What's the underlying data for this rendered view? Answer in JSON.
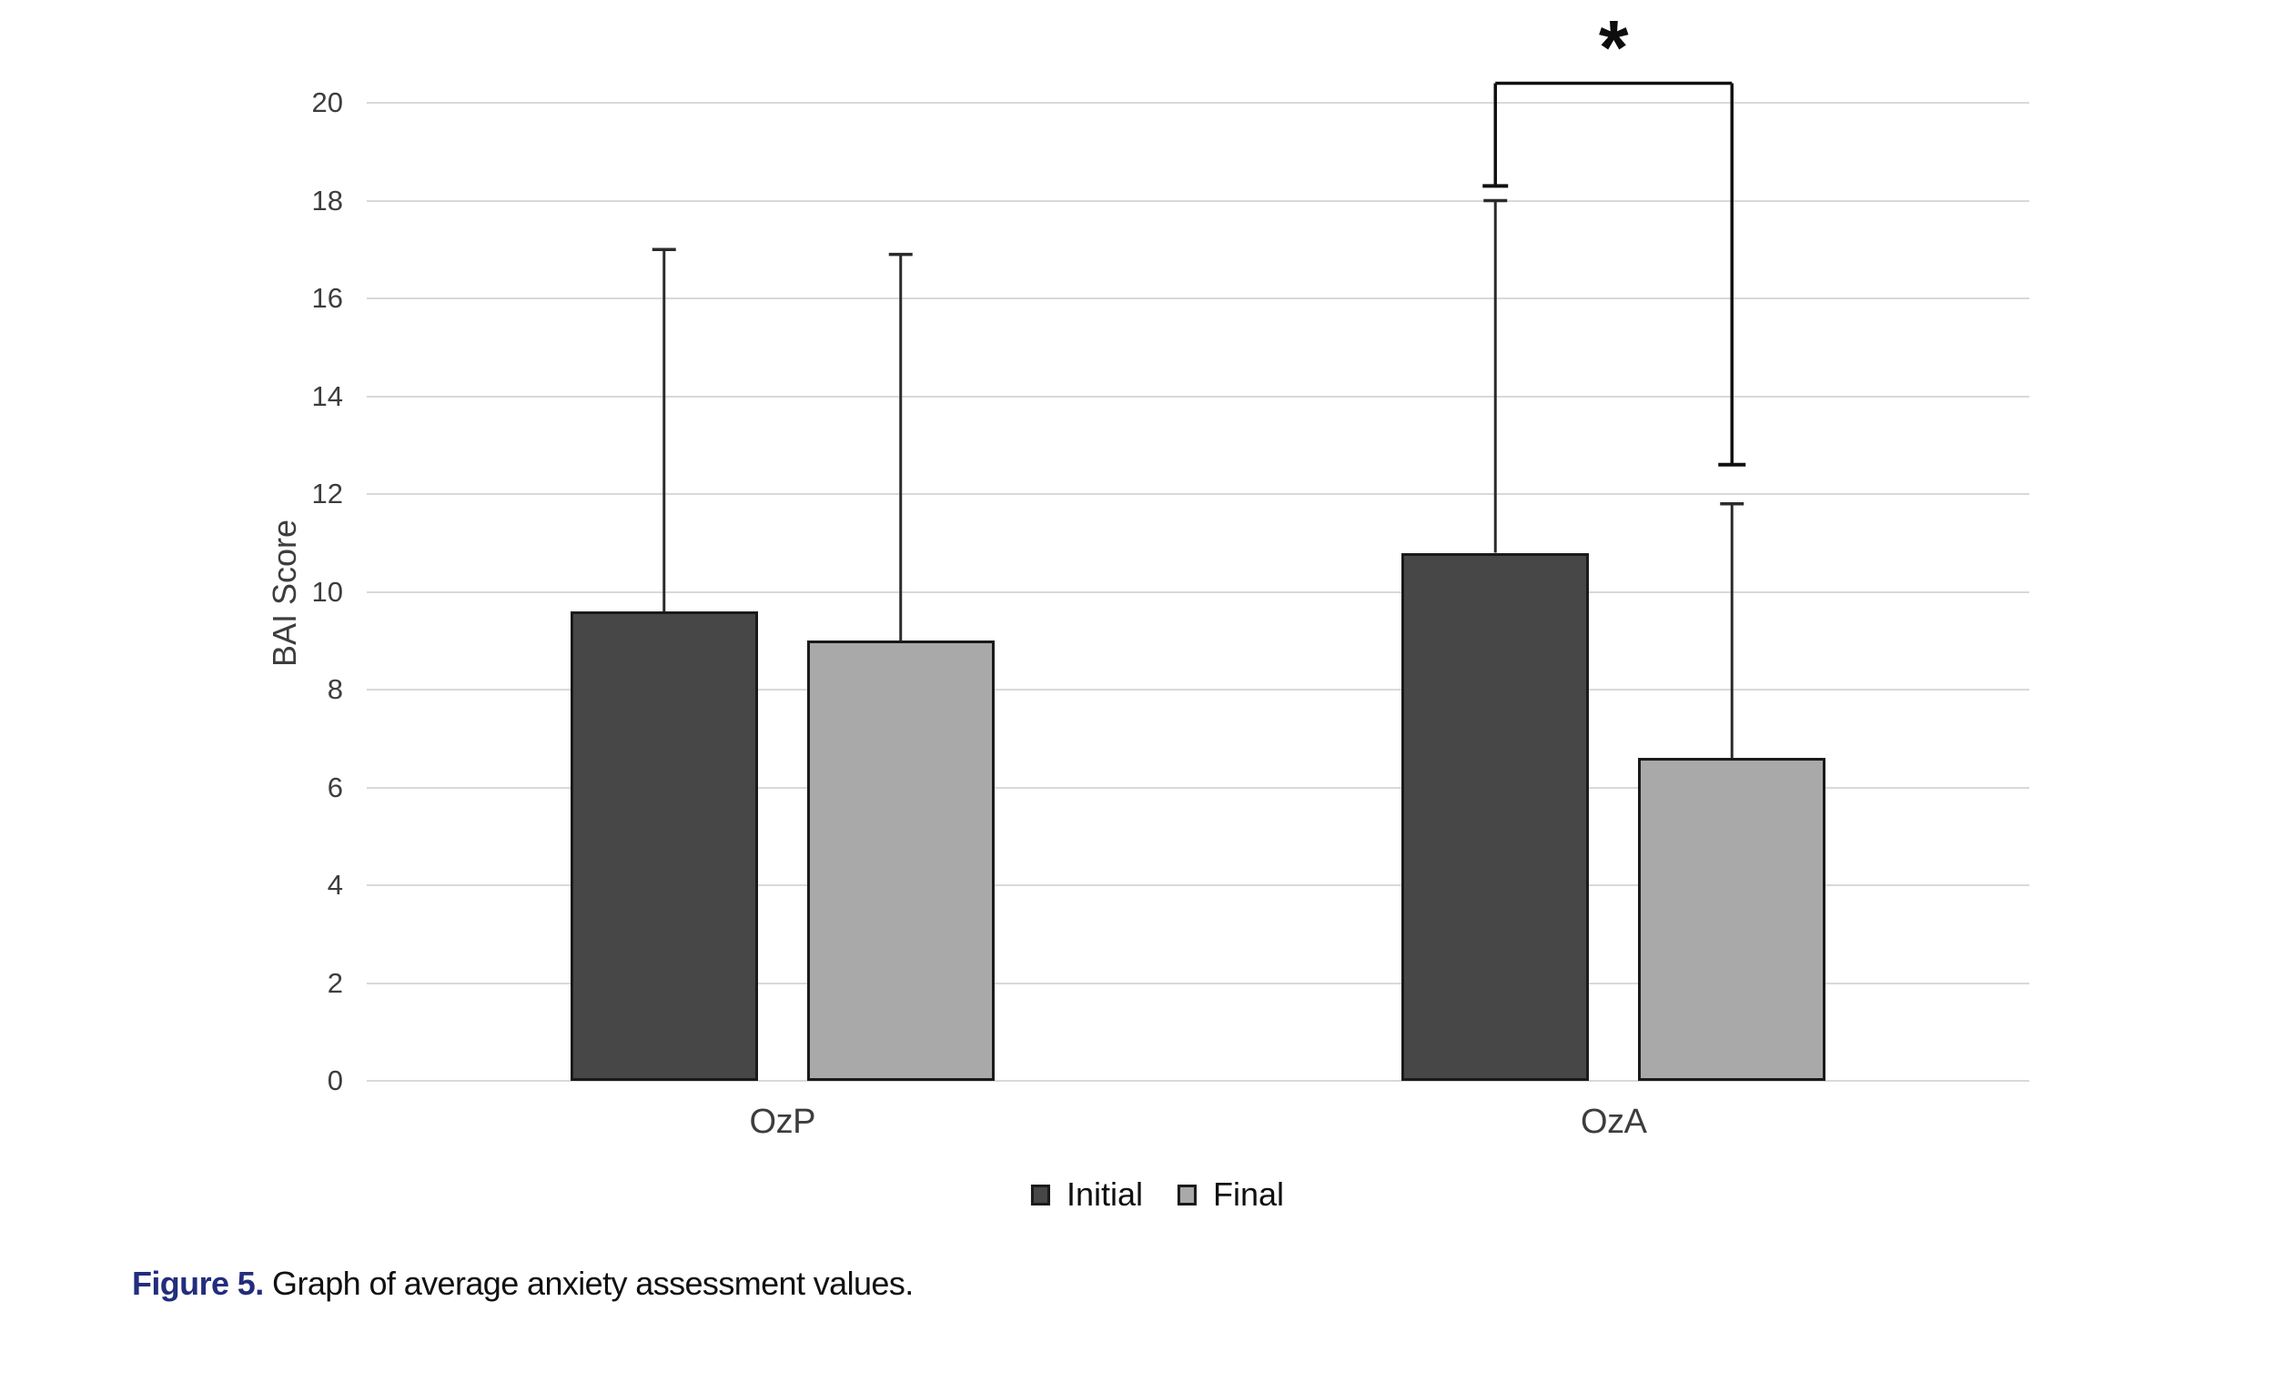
{
  "chart_data": {
    "type": "bar",
    "title": "",
    "xlabel": "",
    "ylabel": "BAI Score",
    "categories": [
      "OzP",
      "OzA"
    ],
    "series": [
      {
        "name": "Initial",
        "color": "#474747",
        "values": [
          9.6,
          10.8
        ],
        "error_top": [
          17.0,
          18.0
        ]
      },
      {
        "name": "Final",
        "color": "#a9a9a9",
        "values": [
          9.0,
          6.6
        ],
        "error_top": [
          16.9,
          11.8
        ]
      }
    ],
    "ylim": [
      0,
      20
    ],
    "ytick_step": 2,
    "grid": true,
    "legend_position": "bottom",
    "significance": {
      "label": "*",
      "category": "OzA",
      "bracket_top_value": 20.4,
      "left_leg_bottom_value": 18.3,
      "right_leg_bottom_value": 12.6
    }
  },
  "caption": {
    "label": "Figure 5.",
    "text": " Graph of average anxiety assessment values.",
    "label_color": "#232d7d"
  },
  "colors": {
    "grid": "#d9d9d9",
    "bar_border": "#1a1a1a",
    "error_bar": "#2b2b2b",
    "bracket": "#101010"
  }
}
